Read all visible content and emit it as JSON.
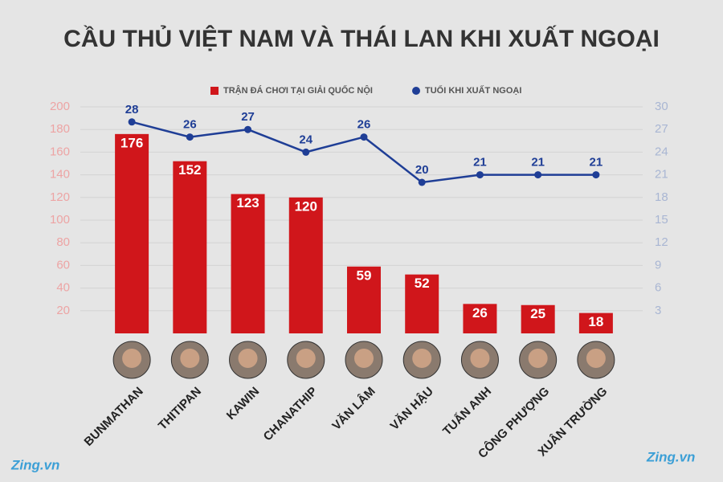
{
  "chart_data": {
    "type": "bar",
    "title": "CẦU THỦ VIỆT NAM VÀ THÁI LAN KHI XUẤT NGOẠI",
    "watermark": "Zing.vn",
    "categories": [
      "BUNMATHAN",
      "THITIPAN",
      "KAWIN",
      "CHANATHIP",
      "VĂN LÂM",
      "VĂN HẬU",
      "TUẤN ANH",
      "CÔNG PHƯỢNG",
      "XUÂN TRƯỜNG"
    ],
    "series": [
      {
        "name": "TRẬN ĐÁ CHƠI TẠI GIẢI QUỐC NỘI",
        "type": "bar",
        "color": "#d0161b",
        "values": [
          176,
          152,
          123,
          120,
          59,
          52,
          26,
          25,
          18
        ]
      },
      {
        "name": "TUỔI KHI XUẤT NGOẠI",
        "type": "line",
        "axis": "y2",
        "color": "#1f3e96",
        "values": [
          28,
          26,
          27,
          24,
          26,
          20,
          21,
          21,
          21
        ]
      }
    ],
    "ylim": [
      0,
      200
    ],
    "yticks": [
      20,
      40,
      60,
      80,
      100,
      120,
      140,
      160,
      180,
      200
    ],
    "y2lim": [
      0,
      30
    ],
    "y2ticks": [
      3,
      6,
      9,
      12,
      15,
      18,
      21,
      24,
      27,
      30
    ],
    "grid": true,
    "legend": "top"
  }
}
